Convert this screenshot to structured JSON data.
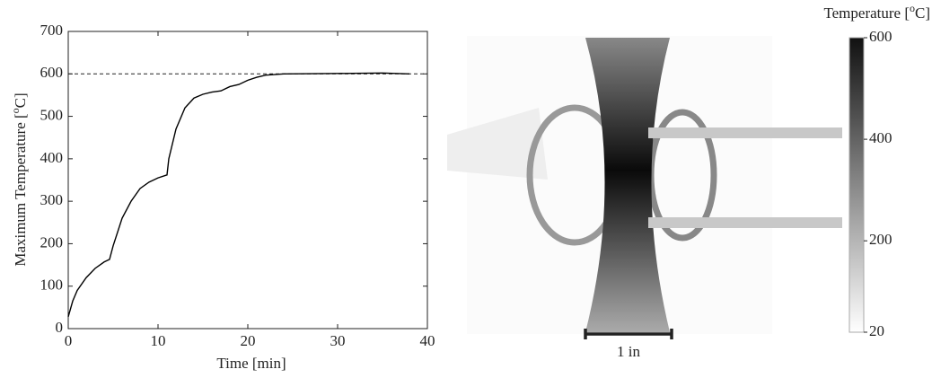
{
  "chart_data": {
    "type": "line",
    "y_label": {
      "prefix": "Maximum Temperature [",
      "sup": "o",
      "suffix": "C]"
    },
    "x_label": "Time [min]",
    "x": [
      0,
      0.5,
      1,
      2,
      3,
      4,
      4.6,
      5,
      6,
      7,
      8,
      9,
      10,
      11,
      11.2,
      12,
      13,
      14,
      15,
      16,
      17,
      18,
      19,
      20,
      21,
      22,
      24,
      30,
      35,
      38
    ],
    "values": [
      28,
      65,
      90,
      120,
      142,
      157,
      163,
      195,
      260,
      300,
      330,
      345,
      355,
      362,
      400,
      470,
      520,
      543,
      552,
      557,
      560,
      570,
      575,
      585,
      592,
      597,
      600,
      601,
      602,
      600
    ],
    "color": "#000000",
    "reference_line": 600,
    "xlim": [
      0,
      40
    ],
    "xticks": [
      0,
      10,
      20,
      30,
      40
    ],
    "ylim": [
      0,
      700
    ],
    "yticks": [
      0,
      100,
      200,
      300,
      400,
      500,
      600,
      700
    ]
  },
  "image": {
    "colorbar_label": {
      "prefix": "Temperature [",
      "sup": "o",
      "suffix": "C]"
    },
    "colorbar_lim": [
      20,
      600
    ],
    "colorbar_ticks": [
      20,
      200,
      400,
      600
    ],
    "scale_bar_label": "1 in"
  }
}
